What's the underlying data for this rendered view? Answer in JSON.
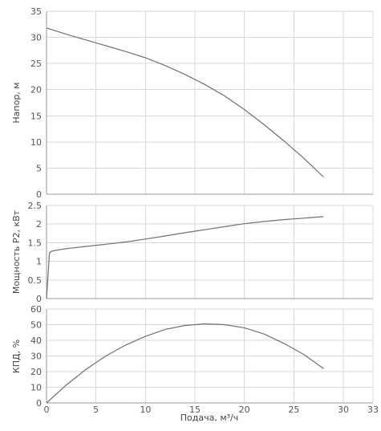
{
  "chart_data": [
    {
      "id": "head",
      "type": "line",
      "ylabel": "Напор, м",
      "ylim": [
        0,
        35
      ],
      "yticks": [
        "0",
        "5",
        "10",
        "15",
        "20",
        "25",
        "30",
        "35"
      ],
      "xlim": [
        0,
        33
      ],
      "grid": true,
      "x": [
        0,
        2,
        4,
        6,
        8,
        10,
        12,
        14,
        16,
        18,
        20,
        22,
        24,
        26,
        28
      ],
      "y": [
        31.8,
        30.6,
        29.5,
        28.4,
        27.3,
        26.1,
        24.6,
        22.9,
        21.0,
        18.8,
        16.2,
        13.3,
        10.2,
        6.9,
        3.3
      ],
      "series": [
        {
          "values": "x/y"
        }
      ]
    },
    {
      "id": "power",
      "type": "line",
      "ylabel": "Мощность P2, кВт",
      "ylim": [
        0,
        2.5
      ],
      "yticks": [
        "0",
        "0.5",
        "1",
        "1.5",
        "2",
        "2.5"
      ],
      "xlim": [
        0,
        33
      ],
      "grid": true,
      "x": [
        0,
        0.3,
        0.6,
        2,
        4,
        6,
        8,
        10,
        12,
        14,
        16,
        18,
        20,
        22,
        24,
        26,
        28
      ],
      "y": [
        0,
        1.23,
        1.28,
        1.34,
        1.4,
        1.46,
        1.52,
        1.6,
        1.68,
        1.77,
        1.85,
        1.93,
        2.01,
        2.07,
        2.12,
        2.16,
        2.2
      ]
    },
    {
      "id": "efficiency",
      "type": "line",
      "ylabel": "КПД, %",
      "xlabel": "Подача, м³/ч",
      "ylim": [
        0,
        60
      ],
      "yticks": [
        "0",
        "10",
        "20",
        "30",
        "40",
        "50",
        "60"
      ],
      "xlim": [
        0,
        33
      ],
      "xticks": [
        "0",
        "5",
        "10",
        "15",
        "20",
        "25",
        "30",
        "33"
      ],
      "xtick_values": [
        0,
        5,
        10,
        15,
        20,
        25,
        30,
        33
      ],
      "grid": true,
      "x": [
        0,
        2,
        4,
        6,
        8,
        10,
        12,
        14,
        16,
        18,
        20,
        22,
        24,
        26,
        28
      ],
      "y": [
        0,
        11.5,
        21.5,
        30,
        37,
        42.5,
        47,
        49.5,
        50.5,
        50,
        48,
        44,
        38,
        31,
        22
      ]
    }
  ]
}
